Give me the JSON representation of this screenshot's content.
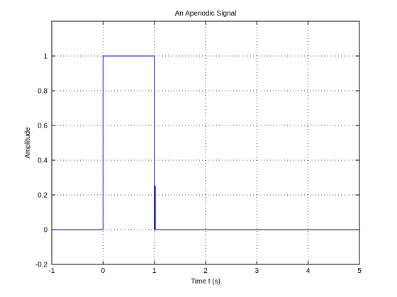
{
  "chart_data": {
    "type": "line",
    "title": "An Aperiodic Signal",
    "xlabel": "Time t (s)",
    "ylabel": "Amplitude",
    "xlim": [
      -1,
      5
    ],
    "ylim": [
      -0.2,
      1.2
    ],
    "xticks": [
      -1,
      0,
      1,
      2,
      3,
      4,
      5
    ],
    "yticks": [
      -0.2,
      0,
      0.2,
      0.4,
      0.6,
      0.8,
      1
    ],
    "xtick_labels": [
      "-1",
      "0",
      "1",
      "2",
      "3",
      "4",
      "5"
    ],
    "ytick_labels": [
      "-0.2",
      "0",
      "0.2",
      "0.4",
      "0.6",
      "0.8",
      "1"
    ],
    "grid": true,
    "grid_style": "dotted",
    "series": [
      {
        "color": "#0000cc",
        "x": [
          -1,
          0,
          0,
          1,
          1,
          1.005,
          1.005,
          1.02,
          1.02,
          1.03,
          1.03,
          5
        ],
        "y": [
          0,
          0,
          1,
          1,
          0,
          0,
          0.25,
          0.25,
          0.0,
          0.0,
          0,
          0
        ]
      }
    ]
  }
}
